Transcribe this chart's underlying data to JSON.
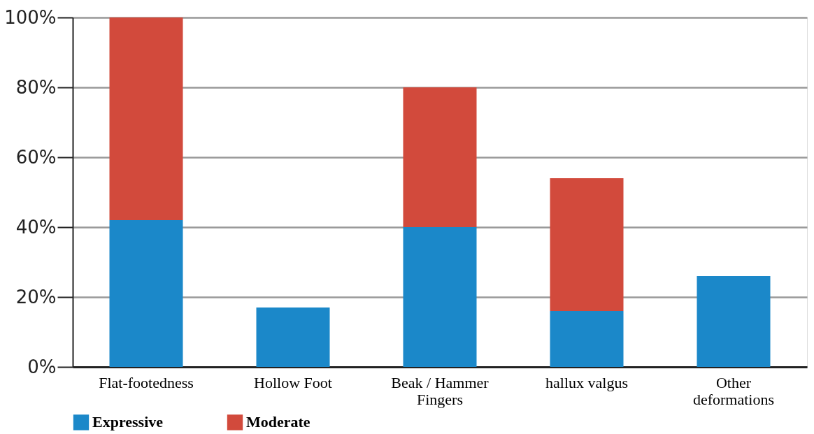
{
  "chart_data": {
    "type": "bar",
    "stacked": true,
    "categories": [
      "Flat-footedness",
      "Hollow Foot",
      "Beak / Hammer Fingers",
      "hallux valgus",
      "Other deformations"
    ],
    "series": [
      {
        "name": "Expressive",
        "color": "#1b88c9",
        "values": [
          42,
          17,
          40,
          16,
          26
        ]
      },
      {
        "name": "Moderate",
        "color": "#d24a3c",
        "values": [
          58,
          null,
          40,
          38,
          null
        ]
      }
    ],
    "ylim": [
      0,
      100
    ],
    "yticks": [
      {
        "value": 0,
        "label": "0%"
      },
      {
        "value": 20,
        "label": "20%"
      },
      {
        "value": 40,
        "label": "40%"
      },
      {
        "value": 60,
        "label": "60%"
      },
      {
        "value": 80,
        "label": "80%"
      },
      {
        "value": 100,
        "label": "100%"
      }
    ],
    "grid": "y",
    "legend": "bottom"
  }
}
